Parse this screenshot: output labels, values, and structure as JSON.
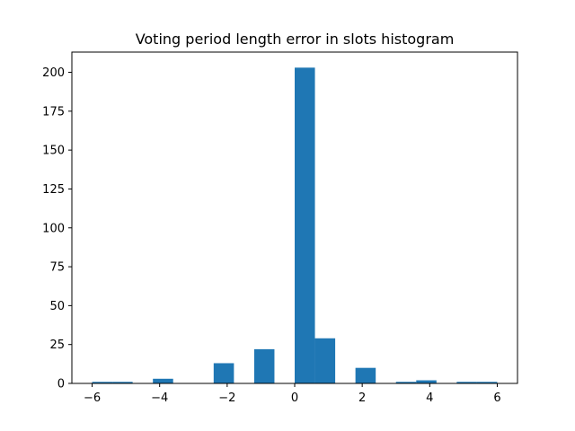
{
  "chart_data": {
    "type": "bar",
    "title": "Voting period length error in slots histogram",
    "xlabel": "",
    "ylabel": "",
    "bar_color": "#1f77b4",
    "bins": [
      {
        "x0": -6.0,
        "x1": -5.4,
        "count": 1
      },
      {
        "x0": -5.4,
        "x1": -4.8,
        "count": 1
      },
      {
        "x0": -4.2,
        "x1": -3.6,
        "count": 3
      },
      {
        "x0": -2.4,
        "x1": -1.8,
        "count": 13
      },
      {
        "x0": -1.2,
        "x1": -0.6,
        "count": 22
      },
      {
        "x0": 0.0,
        "x1": 0.6,
        "count": 203
      },
      {
        "x0": 0.6,
        "x1": 1.2,
        "count": 29
      },
      {
        "x0": 1.8,
        "x1": 2.4,
        "count": 10
      },
      {
        "x0": 3.0,
        "x1": 3.6,
        "count": 1
      },
      {
        "x0": 3.6,
        "x1": 4.2,
        "count": 2
      },
      {
        "x0": 4.8,
        "x1": 5.4,
        "count": 1
      },
      {
        "x0": 5.4,
        "x1": 6.0,
        "count": 1
      }
    ],
    "xlim": [
      -6.6,
      6.6
    ],
    "ylim": [
      0,
      213
    ],
    "xticks": [
      -6,
      -4,
      -2,
      0,
      2,
      4,
      6
    ],
    "xtick_labels": [
      "−6",
      "−4",
      "−2",
      "0",
      "2",
      "4",
      "6"
    ],
    "yticks": [
      0,
      25,
      50,
      75,
      100,
      125,
      150,
      175,
      200
    ],
    "ytick_labels": [
      "0",
      "25",
      "50",
      "75",
      "100",
      "125",
      "150",
      "175",
      "200"
    ],
    "grid": false,
    "legend": "none"
  }
}
